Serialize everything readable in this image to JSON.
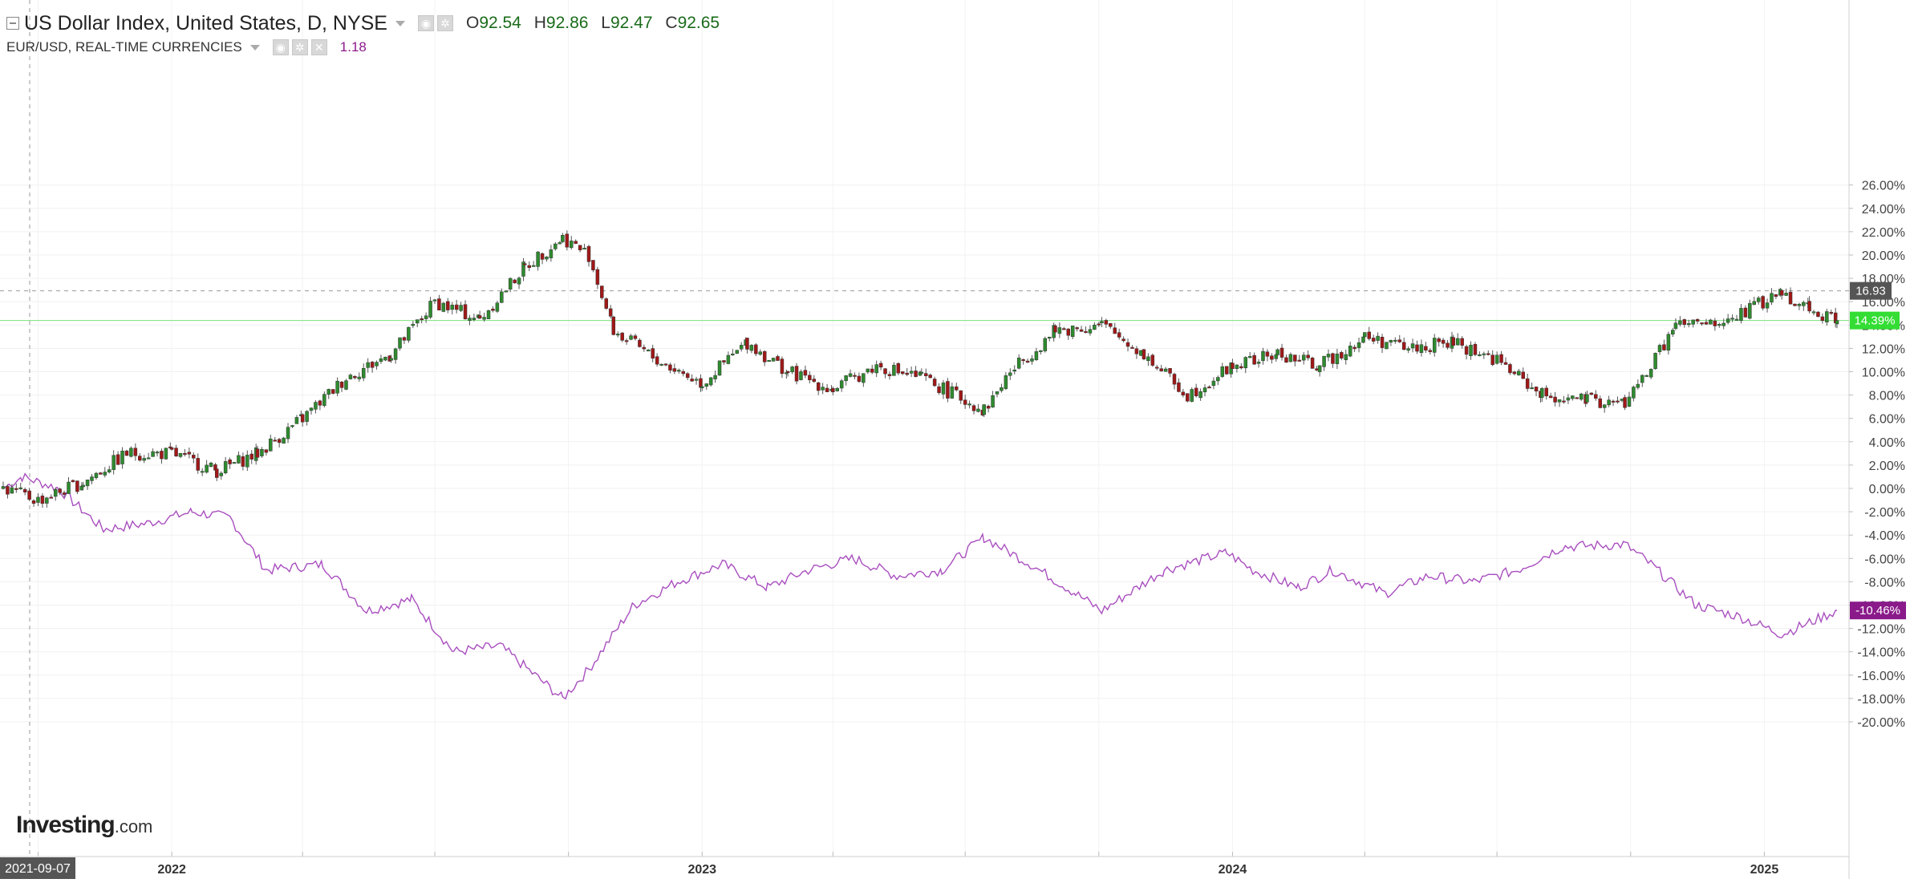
{
  "legend": {
    "title": "US Dollar Index, United States, D, NYSE",
    "ohlc": {
      "o_label": "O",
      "o": "92.54",
      "h_label": "H",
      "h": "92.86",
      "l_label": "L",
      "l": "92.47",
      "c_label": "C",
      "c": "92.65"
    },
    "overlay_title": "EUR/USD, REAL-TIME CURRENCIES",
    "overlay_value": "1.18"
  },
  "logo": {
    "main": "Investing",
    "suffix": ".com"
  },
  "markers": {
    "crosshair_date": "2021-09-07",
    "crosshair_value": "16.93",
    "last_main": "14.39%",
    "last_overlay": "-10.46%"
  },
  "chart_data": {
    "type": "line",
    "xlabel": "",
    "ylabel": "",
    "ylim": [
      -21,
      27
    ],
    "yticks": [
      "26.00%",
      "24.00%",
      "22.00%",
      "20.00%",
      "18.00%",
      "16.00%",
      "14.00%",
      "12.00%",
      "10.00%",
      "8.00%",
      "6.00%",
      "4.00%",
      "2.00%",
      "0.00%",
      "-2.00%",
      "-4.00%",
      "-6.00%",
      "-8.00%",
      "-10.00%",
      "-12.00%",
      "-14.00%",
      "-16.00%",
      "-18.00%",
      "-20.00%"
    ],
    "xticks": [
      "2022",
      "2023",
      "2024",
      "2025"
    ],
    "grid": true,
    "colors": {
      "up": "#2e8b2e",
      "down": "#a01818",
      "overlay": "#a94fbf",
      "last_main": "#33dd33",
      "last_overlay": "#8a1a8a",
      "crosshair_label": "#555555"
    },
    "series": [
      {
        "name": "US Dollar Index",
        "style": "candlestick",
        "x": [
          "2021-09-07",
          "2021-10-01",
          "2021-11-01",
          "2021-12-01",
          "2022-01-01",
          "2022-02-01",
          "2022-03-01",
          "2022-04-01",
          "2022-05-01",
          "2022-06-01",
          "2022-07-01",
          "2022-08-01",
          "2022-09-01",
          "2022-09-27",
          "2022-10-15",
          "2022-11-01",
          "2022-12-01",
          "2023-01-01",
          "2023-02-01",
          "2023-03-01",
          "2023-04-01",
          "2023-05-01",
          "2023-06-01",
          "2023-07-14",
          "2023-08-01",
          "2023-09-01",
          "2023-10-03",
          "2023-11-01",
          "2023-12-01",
          "2024-01-01",
          "2024-02-01",
          "2024-03-01",
          "2024-04-01",
          "2024-05-01",
          "2024-06-01",
          "2024-07-01",
          "2024-08-01",
          "2024-09-01",
          "2024-09-27",
          "2024-10-15",
          "2024-11-01",
          "2024-12-01",
          "2025-01-13",
          "2025-02-01",
          "2025-02-20"
        ],
        "values": [
          0.0,
          -1.0,
          0.5,
          3.0,
          3.0,
          1.5,
          3.0,
          6.0,
          9.5,
          11.5,
          16.0,
          14.5,
          19.0,
          21.5,
          20.0,
          13.5,
          11.0,
          9.0,
          12.5,
          10.0,
          8.5,
          10.5,
          9.5,
          6.7,
          10.0,
          13.5,
          14.0,
          11.5,
          8.0,
          10.5,
          11.5,
          10.5,
          13.0,
          12.0,
          12.5,
          11.0,
          8.0,
          7.5,
          7.3,
          10.5,
          14.0,
          14.0,
          16.8,
          15.5,
          14.39
        ]
      },
      {
        "name": "EUR/USD",
        "style": "line",
        "x": [
          "2021-09-07",
          "2021-09-20",
          "2021-10-15",
          "2021-11-15",
          "2021-12-15",
          "2022-01-15",
          "2022-02-10",
          "2022-03-07",
          "2022-04-15",
          "2022-05-15",
          "2022-06-15",
          "2022-07-14",
          "2022-08-15",
          "2022-09-27",
          "2022-10-15",
          "2022-11-15",
          "2022-12-15",
          "2023-01-15",
          "2023-02-15",
          "2023-03-15",
          "2023-04-15",
          "2023-05-15",
          "2023-06-15",
          "2023-07-14",
          "2023-08-15",
          "2023-09-15",
          "2023-10-03",
          "2023-11-15",
          "2023-12-28",
          "2024-01-15",
          "2024-02-15",
          "2024-03-10",
          "2024-04-15",
          "2024-05-15",
          "2024-06-15",
          "2024-07-15",
          "2024-08-15",
          "2024-09-27",
          "2024-10-15",
          "2024-11-15",
          "2024-12-15",
          "2025-01-13",
          "2025-02-01",
          "2025-02-20"
        ],
        "values": [
          0.0,
          1.0,
          0.0,
          -3.5,
          -3.0,
          -2.0,
          -2.5,
          -7.0,
          -6.5,
          -10.5,
          -9.5,
          -14.0,
          -13.5,
          -18.0,
          -15.5,
          -10.0,
          -8.0,
          -6.5,
          -8.5,
          -7.0,
          -6.0,
          -7.5,
          -7.0,
          -4.2,
          -6.5,
          -9.0,
          -10.5,
          -7.0,
          -5.5,
          -7.0,
          -8.5,
          -7.0,
          -9.0,
          -7.5,
          -8.0,
          -7.0,
          -5.0,
          -4.8,
          -6.5,
          -10.0,
          -11.0,
          -12.5,
          -11.5,
          -10.46
        ]
      }
    ]
  }
}
